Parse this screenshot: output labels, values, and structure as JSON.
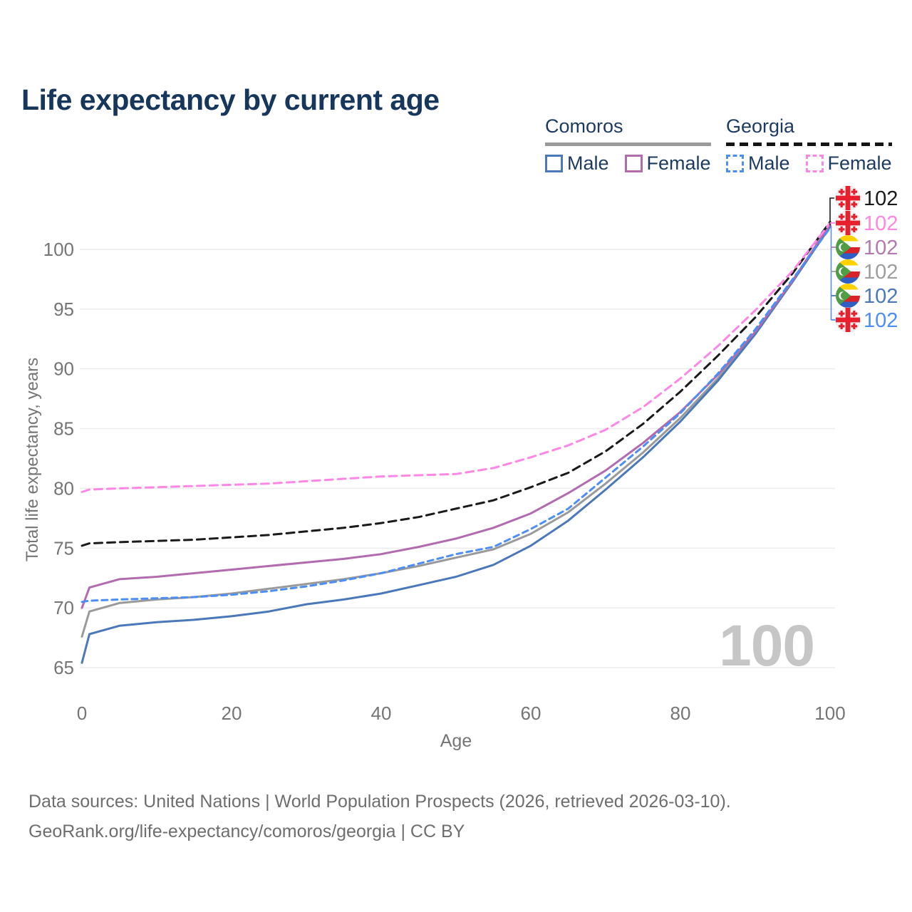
{
  "title": "Life expectancy by current age",
  "legend": {
    "groups": [
      {
        "name": "Comoros",
        "line_style": "solid",
        "underline_color": "#9a9a9a",
        "items": [
          {
            "label": "Male",
            "color": "#4a78b8"
          },
          {
            "label": "Female",
            "color": "#b16bae"
          }
        ]
      },
      {
        "name": "Georgia",
        "line_style": "dashed",
        "underline_color": "#151515",
        "items": [
          {
            "label": "Male",
            "color": "#4d8ef5"
          },
          {
            "label": "Female",
            "color": "#fd87e4"
          }
        ]
      }
    ]
  },
  "watermark": "100",
  "chart_data": {
    "type": "line",
    "title": "Life expectancy by current age",
    "xlabel": "Age",
    "ylabel": "Total life expectancy, years",
    "xlim": [
      0,
      100
    ],
    "ylim": [
      65,
      102.5
    ],
    "x_ticks": [
      0,
      20,
      40,
      60,
      80,
      100
    ],
    "y_ticks": [
      65,
      70,
      75,
      80,
      85,
      90,
      95,
      100
    ],
    "grid": "horizontal",
    "legend_position": "top-right",
    "x": [
      0,
      1,
      5,
      10,
      15,
      20,
      25,
      30,
      35,
      40,
      45,
      50,
      55,
      60,
      65,
      70,
      75,
      80,
      85,
      90,
      95,
      100
    ],
    "series": [
      {
        "id": "comoros_both",
        "name": "Comoros — Both sexes",
        "country": "Comoros",
        "sex": "Both",
        "color": "#9a9a9a",
        "dash": false,
        "values": [
          67.6,
          69.7,
          70.4,
          70.7,
          70.9,
          71.2,
          71.6,
          72.0,
          72.4,
          72.9,
          73.5,
          74.2,
          74.9,
          76.2,
          78.0,
          80.4,
          83.0,
          85.9,
          89.2,
          93.0,
          97.3,
          102.0
        ],
        "end_value": "102"
      },
      {
        "id": "comoros_male",
        "name": "Comoros — Male",
        "country": "Comoros",
        "sex": "Male",
        "color": "#4a78b8",
        "dash": false,
        "values": [
          65.4,
          67.8,
          68.5,
          68.8,
          69.0,
          69.3,
          69.7,
          70.3,
          70.7,
          71.2,
          71.9,
          72.6,
          73.6,
          75.2,
          77.3,
          79.9,
          82.6,
          85.6,
          89.0,
          92.9,
          97.3,
          101.9
        ],
        "end_value": "102"
      },
      {
        "id": "comoros_female",
        "name": "Comoros — Female",
        "country": "Comoros",
        "sex": "Female",
        "color": "#b16bae",
        "dash": false,
        "values": [
          70.0,
          71.7,
          72.4,
          72.6,
          72.9,
          73.2,
          73.5,
          73.8,
          74.1,
          74.5,
          75.1,
          75.8,
          76.7,
          77.9,
          79.6,
          81.5,
          83.8,
          86.4,
          89.5,
          93.1,
          97.4,
          102.1
        ],
        "end_value": "102"
      },
      {
        "id": "georgia_male",
        "name": "Georgia — Male",
        "country": "Georgia",
        "sex": "Male",
        "color": "#4d8ef5",
        "dash": true,
        "values": [
          70.5,
          70.6,
          70.7,
          70.8,
          70.9,
          71.1,
          71.4,
          71.8,
          72.3,
          72.9,
          73.7,
          74.5,
          75.1,
          76.6,
          78.3,
          80.9,
          83.5,
          86.3,
          89.6,
          93.3,
          97.5,
          101.8
        ],
        "end_value": "102"
      },
      {
        "id": "georgia_both",
        "name": "Georgia — Both sexes",
        "country": "Georgia",
        "sex": "Both",
        "color": "#1a1a1a",
        "dash": true,
        "values": [
          75.2,
          75.4,
          75.5,
          75.6,
          75.7,
          75.9,
          76.1,
          76.4,
          76.7,
          77.1,
          77.6,
          78.3,
          79.0,
          80.1,
          81.3,
          83.1,
          85.4,
          88.1,
          91.1,
          94.3,
          98.0,
          102.3
        ],
        "end_value": "102"
      },
      {
        "id": "georgia_female",
        "name": "Georgia — Female",
        "country": "Georgia",
        "sex": "Female",
        "color": "#fd87e4",
        "dash": true,
        "values": [
          79.7,
          79.9,
          80.0,
          80.1,
          80.2,
          80.3,
          80.4,
          80.6,
          80.8,
          81.0,
          81.1,
          81.2,
          81.7,
          82.6,
          83.6,
          84.9,
          86.8,
          89.2,
          91.9,
          94.9,
          98.2,
          102.2
        ],
        "end_value": "102"
      }
    ]
  },
  "end_labels": [
    {
      "flag": "georgia",
      "value": "102",
      "color": "#1a1a1a"
    },
    {
      "flag": "georgia",
      "value": "102",
      "color": "#fd87e4"
    },
    {
      "flag": "comoros",
      "value": "102",
      "color": "#b07ab3"
    },
    {
      "flag": "comoros",
      "value": "102",
      "color": "#9e9e9e"
    },
    {
      "flag": "comoros",
      "value": "102",
      "color": "#4a78b8"
    },
    {
      "flag": "georgia",
      "value": "102",
      "color": "#4d8ef5"
    }
  ],
  "colors": {
    "title": "#16365c",
    "axis_text": "#757575",
    "gridline": "#ececec",
    "watermark": "#c6c6c6",
    "footer_text": "#6e6e6e",
    "callout_bracket_top": "#1a1a1a",
    "callout_bracket_bottom": "#5b8fe8",
    "flag_georgia_red": "#e8202e",
    "flag_comoros_green": "#4f9e45",
    "flag_comoros_yellow": "#ffd100",
    "flag_comoros_red": "#d8232a",
    "flag_comoros_blue": "#2f5fc4"
  },
  "footer": {
    "line1": "Data sources: United Nations | World Population Prospects (2026, retrieved 2026-03-10).",
    "line2": "GeoRank.org/life-expectancy/comoros/georgia | CC BY"
  }
}
